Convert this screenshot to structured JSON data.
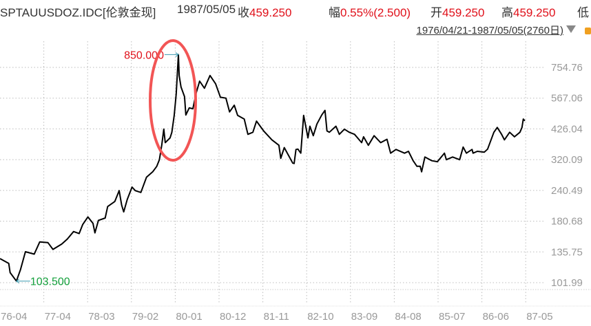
{
  "header": {
    "symbol": "SPTAUUSDOZ.IDC[伦敦金现]",
    "date": "1987/05/05",
    "close_label": "收",
    "close_value": "459.250",
    "change_label": "幅",
    "change_value": "0.55%(2.500)",
    "open_label": "开",
    "open_value": "459.250",
    "high_label": "高",
    "high_value": "459.250",
    "low_label": "低",
    "range": "1976/04/21-1987/05/05(2760日)"
  },
  "colors": {
    "up": "#e0101a",
    "line": "#000000",
    "highlight_ellipse": "#f25555",
    "low_annotation": "#14a03c",
    "arrow": "#3a9ab0",
    "axis_text": "#999999"
  },
  "icons": [
    "dropdown-triangle-icon",
    "info-badge-icon"
  ],
  "chart_data": {
    "type": "line",
    "y_scale": "log",
    "grid": true,
    "x_range": [
      "1976-04-21",
      "1987-05-05"
    ],
    "x_tick_labels": [
      "76-04",
      "77-04",
      "78-03",
      "79-02",
      "80-01",
      "80-12",
      "81-11",
      "82-10",
      "83-09",
      "84-08",
      "85-07",
      "86-06",
      "87-05"
    ],
    "y_ticks": [
      754.76,
      567.06,
      426.04,
      320.09,
      240.49,
      180.68,
      135.75,
      101.99
    ],
    "y_tick_labels": [
      "754.76",
      "567.06",
      "426.04",
      "320.09",
      "240.49",
      "180.68",
      "135.75",
      "101.99"
    ],
    "annotations": {
      "max_label": "850.000",
      "max_date": "1980-01-21",
      "max_value": 850.0,
      "min_label": "103.500",
      "min_date": "1976-08-25",
      "min_value": 103.5
    },
    "points": [
      [
        "1976-04-21",
        127.6
      ],
      [
        "1976-06-27",
        122
      ],
      [
        "1976-07-08",
        112
      ],
      [
        "1976-08-25",
        103.5
      ],
      [
        "1976-09-25",
        115
      ],
      [
        "1976-11-02",
        136
      ],
      [
        "1977-01-09",
        133
      ],
      [
        "1977-02-20",
        149
      ],
      [
        "1977-04-24",
        148
      ],
      [
        "1977-06-02",
        139
      ],
      [
        "1977-08-08",
        146
      ],
      [
        "1977-09-20",
        153
      ],
      [
        "1977-11-07",
        164
      ],
      [
        "1977-12-20",
        161
      ],
      [
        "1978-01-16",
        175
      ],
      [
        "1978-02-25",
        188
      ],
      [
        "1978-04-05",
        177
      ],
      [
        "1978-04-20",
        162
      ],
      [
        "1978-05-17",
        182
      ],
      [
        "1978-07-08",
        186
      ],
      [
        "1978-07-27",
        207
      ],
      [
        "1978-09-20",
        217
      ],
      [
        "1978-10-23",
        240
      ],
      [
        "1978-11-11",
        210
      ],
      [
        "1978-11-27",
        197
      ],
      [
        "1978-12-24",
        221
      ],
      [
        "1979-01-30",
        248
      ],
      [
        "1979-02-24",
        240
      ],
      [
        "1979-04-08",
        236
      ],
      [
        "1979-05-21",
        272
      ],
      [
        "1979-07-08",
        286
      ],
      [
        "1979-08-08",
        301
      ],
      [
        "1979-08-28",
        320
      ],
      [
        "1979-09-15",
        366
      ],
      [
        "1979-10-01",
        425
      ],
      [
        "1979-10-12",
        375
      ],
      [
        "1979-11-18",
        392
      ],
      [
        "1979-12-02",
        413
      ],
      [
        "1979-12-20",
        483
      ],
      [
        "1980-01-04",
        589
      ],
      [
        "1980-01-21",
        850
      ],
      [
        "1980-01-27",
        700
      ],
      [
        "1980-02-10",
        629
      ],
      [
        "1980-03-08",
        575
      ],
      [
        "1980-03-18",
        485
      ],
      [
        "1980-04-13",
        518
      ],
      [
        "1980-05-11",
        514
      ],
      [
        "1980-06-06",
        596
      ],
      [
        "1980-07-02",
        664
      ],
      [
        "1980-08-08",
        622
      ],
      [
        "1980-09-20",
        700
      ],
      [
        "1980-11-02",
        648
      ],
      [
        "1980-12-09",
        572
      ],
      [
        "1981-01-20",
        567
      ],
      [
        "1981-02-17",
        499
      ],
      [
        "1981-03-25",
        531
      ],
      [
        "1981-04-20",
        483
      ],
      [
        "1981-06-10",
        467
      ],
      [
        "1981-07-08",
        405
      ],
      [
        "1981-08-15",
        413
      ],
      [
        "1981-09-12",
        458
      ],
      [
        "1981-11-06",
        418
      ],
      [
        "1982-01-08",
        385
      ],
      [
        "1982-03-03",
        366
      ],
      [
        "1982-03-17",
        324
      ],
      [
        "1982-04-13",
        358
      ],
      [
        "1982-06-17",
        310
      ],
      [
        "1982-06-28",
        309
      ],
      [
        "1982-07-12",
        352
      ],
      [
        "1982-07-27",
        353
      ],
      [
        "1982-08-18",
        340
      ],
      [
        "1982-09-09",
        483
      ],
      [
        "1982-10-12",
        392
      ],
      [
        "1982-10-27",
        437
      ],
      [
        "1982-11-22",
        400
      ],
      [
        "1982-12-20",
        446
      ],
      [
        "1983-01-26",
        485
      ],
      [
        "1983-02-20",
        506
      ],
      [
        "1983-03-07",
        418
      ],
      [
        "1983-03-25",
        413
      ],
      [
        "1983-05-15",
        437
      ],
      [
        "1983-06-10",
        405
      ],
      [
        "1983-07-19",
        425
      ],
      [
        "1983-08-25",
        413
      ],
      [
        "1983-10-05",
        405
      ],
      [
        "1983-11-28",
        375
      ],
      [
        "1983-12-13",
        396
      ],
      [
        "1984-01-19",
        366
      ],
      [
        "1984-03-03",
        400
      ],
      [
        "1984-04-23",
        375
      ],
      [
        "1984-06-10",
        387
      ],
      [
        "1984-07-08",
        340
      ],
      [
        "1984-08-18",
        352
      ],
      [
        "1984-10-23",
        340
      ],
      [
        "1984-11-22",
        346
      ],
      [
        "1984-12-28",
        317
      ],
      [
        "1985-01-26",
        301
      ],
      [
        "1985-02-20",
        301
      ],
      [
        "1985-03-03",
        286
      ],
      [
        "1985-03-28",
        328
      ],
      [
        "1985-05-21",
        317
      ],
      [
        "1985-07-02",
        314
      ],
      [
        "1985-08-25",
        340
      ],
      [
        "1985-09-09",
        320
      ],
      [
        "1985-10-27",
        328
      ],
      [
        "1985-12-20",
        320
      ],
      [
        "1986-01-16",
        360
      ],
      [
        "1986-02-10",
        340
      ],
      [
        "1986-03-25",
        352
      ],
      [
        "1986-04-02",
        340
      ],
      [
        "1986-05-05",
        346
      ],
      [
        "1986-06-27",
        343
      ],
      [
        "1986-07-23",
        353
      ],
      [
        "1986-08-18",
        385
      ],
      [
        "1986-09-09",
        413
      ],
      [
        "1986-10-05",
        432
      ],
      [
        "1986-11-07",
        405
      ],
      [
        "1986-11-29",
        385
      ],
      [
        "1987-01-08",
        413
      ],
      [
        "1987-02-14",
        396
      ],
      [
        "1987-03-28",
        413
      ],
      [
        "1987-04-13",
        432
      ],
      [
        "1987-04-23",
        467
      ],
      [
        "1987-05-05",
        459.25
      ]
    ]
  }
}
